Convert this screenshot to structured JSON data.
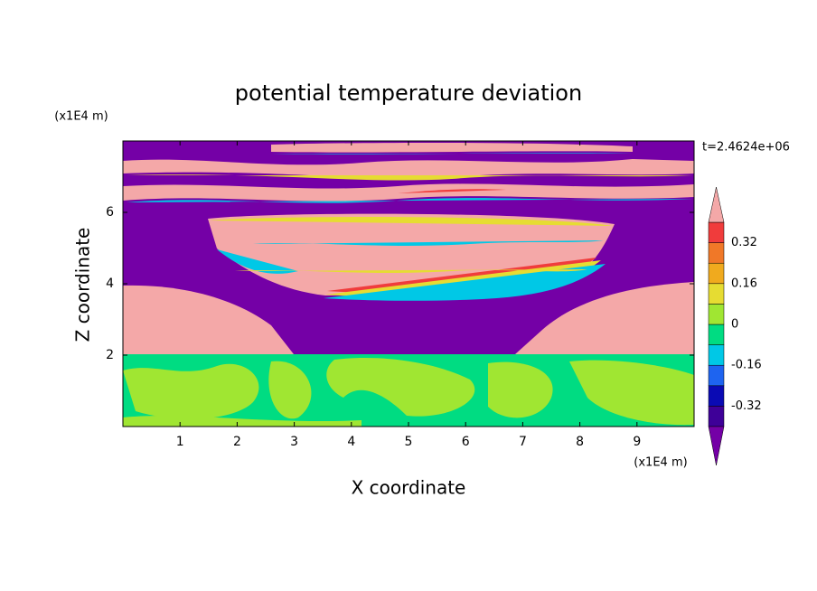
{
  "chart_data": {
    "type": "contour",
    "title": "potential temperature deviation",
    "x_label": "X coordinate",
    "y_label": "Z coordinate",
    "x_unit": "(x1E4 m)",
    "y_unit": "(x1E4 m)",
    "time_label": "t=2.4624e+06",
    "xlim": [
      0,
      10
    ],
    "ylim": [
      0,
      8
    ],
    "xticks": [
      1,
      2,
      3,
      4,
      5,
      6,
      7,
      8,
      9
    ],
    "yticks": [
      2,
      4,
      6
    ],
    "colorbar": {
      "levels": [
        -0.4,
        -0.32,
        -0.24,
        -0.16,
        -0.08,
        0,
        0.08,
        0.16,
        0.24,
        0.32,
        0.4
      ],
      "ticks": [
        0.32,
        0.16,
        0,
        -0.16,
        -0.32
      ],
      "colors": [
        "#7400a6",
        "#3e0098",
        "#0a0ab4",
        "#1e64f0",
        "#00c8e6",
        "#00dc82",
        "#a0e632",
        "#e6dc32",
        "#f0aa1e",
        "#f07828",
        "#f03c3c",
        "#f4a8a8"
      ]
    }
  }
}
